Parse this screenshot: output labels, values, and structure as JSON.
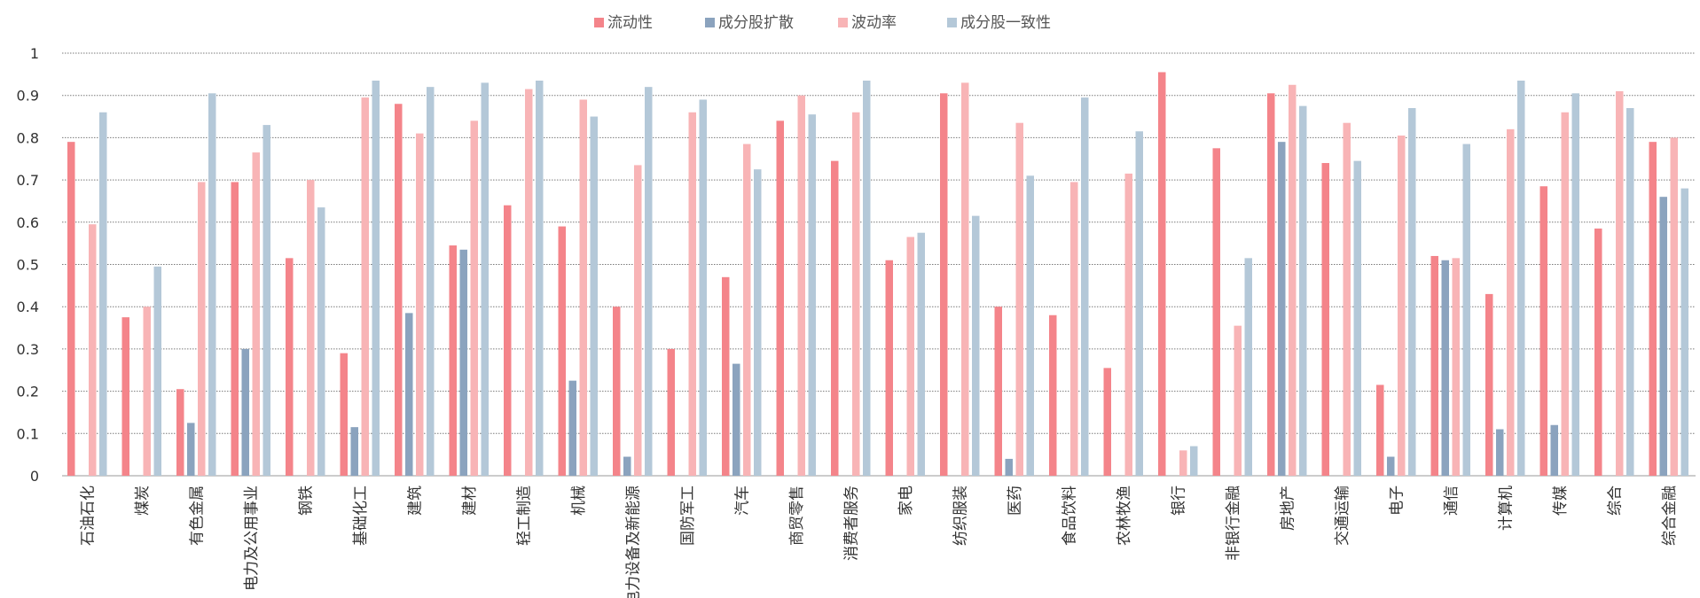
{
  "chart_data": {
    "type": "bar",
    "categories": [
      "石油石化",
      "煤炭",
      "有色金属",
      "电力及公用事业",
      "钢铁",
      "基础化工",
      "建筑",
      "建材",
      "轻工制造",
      "机械",
      "电力设备及新能源",
      "国防军工",
      "汽车",
      "商贸零售",
      "消费者服务",
      "家电",
      "纺织服装",
      "医药",
      "食品饮料",
      "农林牧渔",
      "银行",
      "非银行金融",
      "房地产",
      "交通运输",
      "电子",
      "通信",
      "计算机",
      "传媒",
      "综合",
      "综合金融"
    ],
    "series": [
      {
        "name": "流动性",
        "color": "#f4848a",
        "values": [
          0.79,
          0.375,
          0.205,
          0.695,
          0.515,
          0.29,
          0.88,
          0.545,
          0.64,
          0.59,
          0.4,
          0.3,
          0.47,
          0.84,
          0.745,
          0.51,
          0.905,
          0.4,
          0.38,
          0.255,
          0.955,
          0.775,
          0.905,
          0.74,
          0.215,
          0.52,
          0.43,
          0.685,
          0.585,
          0.79
        ]
      },
      {
        "name": "成分股扩散",
        "color": "#8ba3be",
        "values": [
          0,
          0,
          0.125,
          0.3,
          0,
          0.115,
          0.385,
          0.535,
          0,
          0.225,
          0.045,
          0,
          0.265,
          0,
          0,
          0,
          0,
          0.04,
          0,
          0,
          0,
          0,
          0.79,
          0,
          0.045,
          0.51,
          0.11,
          0.12,
          0,
          0.66
        ]
      },
      {
        "name": "波动率",
        "color": "#f8b4b6",
        "values": [
          0.595,
          0.4,
          0.695,
          0.765,
          0.7,
          0.895,
          0.81,
          0.84,
          0.915,
          0.89,
          0.735,
          0.86,
          0.785,
          0.9,
          0.86,
          0.565,
          0.93,
          0.835,
          0.695,
          0.715,
          0.06,
          0.355,
          0.925,
          0.835,
          0.805,
          0.515,
          0.82,
          0.86,
          0.91,
          0.8
        ]
      },
      {
        "name": "成分股一致性",
        "color": "#b4c8d8",
        "values": [
          0.86,
          0.495,
          0.905,
          0.83,
          0.635,
          0.935,
          0.92,
          0.93,
          0.935,
          0.85,
          0.92,
          0.89,
          0.725,
          0.855,
          0.935,
          0.575,
          0.615,
          0.71,
          0.895,
          0.815,
          0.07,
          0.515,
          0.875,
          0.745,
          0.87,
          0.785,
          0.935,
          0.905,
          0.87,
          0.68
        ]
      }
    ],
    "yticks": [
      "0",
      "0.1",
      "0.2",
      "0.3",
      "0.4",
      "0.5",
      "0.6",
      "0.7",
      "0.8",
      "0.9",
      "1"
    ],
    "ylim": [
      0,
      1
    ],
    "grid": true,
    "legend": "top-center"
  }
}
